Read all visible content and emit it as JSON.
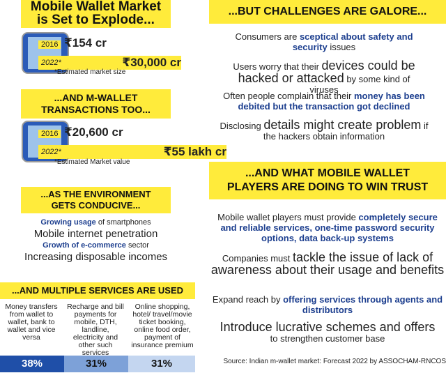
{
  "left": {
    "market": {
      "title": [
        "Mobile Wallet Market",
        "is Set to Explode..."
      ],
      "rows": [
        {
          "year": "2016",
          "value": "₹154 cr"
        },
        {
          "year": "2022*",
          "value": "₹30,000 cr"
        }
      ],
      "note": "*Estimated market size"
    },
    "transactions": {
      "title": [
        "...AND M-WALLET",
        "TRANSACTIONS TOO..."
      ],
      "rows": [
        {
          "year": "2016",
          "value": "₹20,600 cr"
        },
        {
          "year": "2022*",
          "value": "₹55 lakh cr"
        }
      ],
      "note": "*Estimated Market value"
    },
    "environment": {
      "title": [
        "...AS THE ENVIRONMENT",
        "GETS CONDUCIVE..."
      ],
      "items": [
        [
          "Growing usage",
          " of smartphones"
        ],
        [
          "Mobile internet penetration"
        ],
        [
          "Growth of e-commerce",
          " sector"
        ],
        [
          "Increasing disposable incomes"
        ]
      ]
    },
    "services": {
      "title": "...AND MULTIPLE SERVICES ARE USED",
      "columns": [
        {
          "text": "Money transfers from wallet to wallet, bank to wallet and vice versa",
          "share": "38%"
        },
        {
          "text": "Recharge and bill payments for mobile, DTH, landline, electricity and other such services",
          "share": "31%"
        },
        {
          "text": "Online shopping, hotel/ travel/movie ticket booking, online food order, payment of insurance premium",
          "share": "31%"
        }
      ]
    }
  },
  "challenges": {
    "title": "...BUT CHALLENGES ARE GALORE...",
    "items": [
      [
        "Consumers are ",
        "sceptical about safety and security",
        " issues"
      ],
      [
        "Users worry that their ",
        "devices could be hacked or attacked",
        " by some kind of viruses"
      ],
      [
        "Often people complain that their ",
        "money has been debited but the transaction got declined"
      ],
      [
        "Disclosing ",
        "details might create problem",
        " if the hackers obtain information"
      ]
    ]
  },
  "trust": {
    "title": [
      "...AND WHAT MOBILE WALLET",
      "PLAYERS ARE DOING TO WIN TRUST"
    ],
    "items": [
      [
        "Mobile wallet players must provide ",
        "completely secure and reliable services, one-time password security options, data back-up systems"
      ],
      [
        "Companies must ",
        "tackle the issue of lack of awareness about their usage and benefits"
      ],
      [
        "Expand reach by ",
        "offering services through agents and distributors"
      ],
      [
        "Introduce lucrative schemes and offers",
        " to strengthen customer base"
      ]
    ]
  },
  "source": "Source: Indian m-wallet market: Forecast 2022 by ASSOCHAM-RNCOS"
}
